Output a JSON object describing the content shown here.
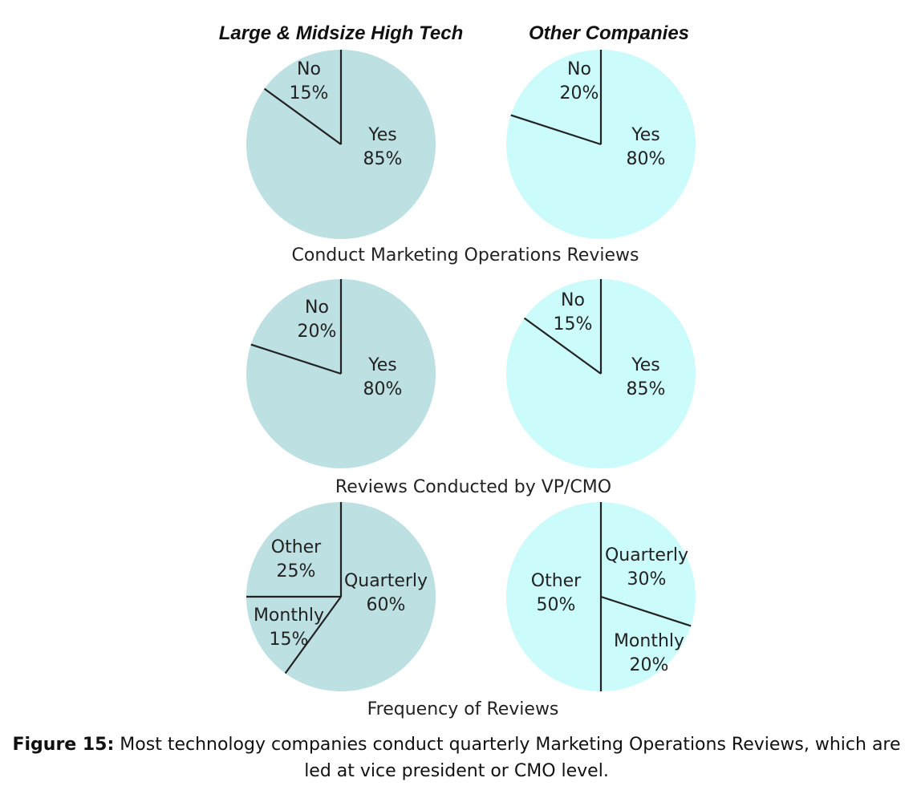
{
  "colors": {
    "left": "#bde0e3",
    "right": "#ccfbfb",
    "divider": "#222222"
  },
  "chart_data": {
    "type": "pie",
    "column_titles": [
      "Large & Midsize High Tech",
      "Other Companies"
    ],
    "rows": [
      {
        "title": "Conduct Marketing Operations Reviews",
        "charts": [
          {
            "group": "Large & Midsize High Tech",
            "slices": [
              {
                "label": "Yes",
                "value": 85,
                "display": "85%"
              },
              {
                "label": "No",
                "value": 15,
                "display": "15%"
              }
            ]
          },
          {
            "group": "Other Companies",
            "slices": [
              {
                "label": "Yes",
                "value": 80,
                "display": "80%"
              },
              {
                "label": "No",
                "value": 20,
                "display": "20%"
              }
            ]
          }
        ]
      },
      {
        "title": "Reviews Conducted by VP/CMO",
        "charts": [
          {
            "group": "Large & Midsize High Tech",
            "slices": [
              {
                "label": "Yes",
                "value": 80,
                "display": "80%"
              },
              {
                "label": "No",
                "value": 20,
                "display": "20%"
              }
            ]
          },
          {
            "group": "Other Companies",
            "slices": [
              {
                "label": "Yes",
                "value": 85,
                "display": "85%"
              },
              {
                "label": "No",
                "value": 15,
                "display": "15%"
              }
            ]
          }
        ]
      },
      {
        "title": "Frequency of Reviews",
        "charts": [
          {
            "group": "Large & Midsize High Tech",
            "slices": [
              {
                "label": "Quarterly",
                "value": 60,
                "display": "60%"
              },
              {
                "label": "Monthly",
                "value": 15,
                "display": "15%"
              },
              {
                "label": "Other",
                "value": 25,
                "display": "25%"
              }
            ]
          },
          {
            "group": "Other Companies",
            "slices": [
              {
                "label": "Quarterly",
                "value": 30,
                "display": "30%"
              },
              {
                "label": "Monthly",
                "value": 20,
                "display": "20%"
              },
              {
                "label": "Other",
                "value": 50,
                "display": "50%"
              }
            ]
          }
        ]
      }
    ]
  },
  "caption": {
    "prefix": "Figure 15:",
    "text": "Most technology companies conduct quarterly Marketing Operations Reviews, which are led at vice president or CMO level."
  }
}
